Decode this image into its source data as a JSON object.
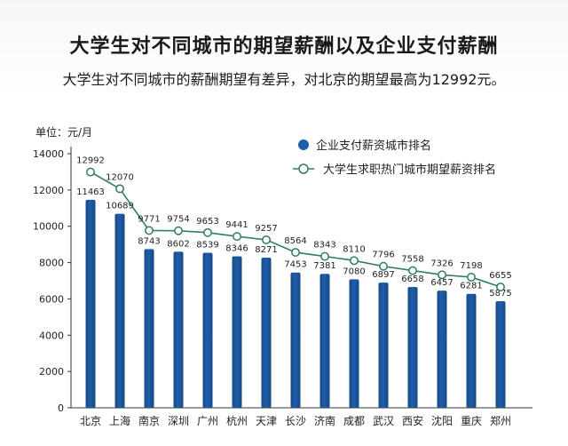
{
  "title": "大学生对不同城市的期望薪酬以及企业支付薪酬",
  "subtitle": "大学生对不同城市的薪酬期望有差异，对北京的期望最高为12992元。",
  "unit_label": "单位：元/月",
  "colors": {
    "bar": "#1f5ea8",
    "bar_dark": "#164a88",
    "line": "#2e7d5b",
    "marker_fill": "#ffffff",
    "axis": "#333333",
    "text": "#222222"
  },
  "chart_data": {
    "type": "bar",
    "categories": [
      "北京",
      "上海",
      "南京",
      "深圳",
      "广州",
      "杭州",
      "天津",
      "长沙",
      "济南",
      "成都",
      "武汉",
      "西安",
      "沈阳",
      "重庆",
      "郑州"
    ],
    "series": [
      {
        "name": "企业支付薪资城市排名",
        "type": "bar",
        "values": [
          11463,
          10689,
          8743,
          8602,
          8539,
          8346,
          8271,
          7453,
          7381,
          7080,
          6897,
          6658,
          6457,
          6281,
          5875
        ]
      },
      {
        "name": "大学生求职热门城市期望薪资排名",
        "type": "line",
        "values": [
          12992,
          12070,
          9771,
          9754,
          9653,
          9441,
          9257,
          8564,
          8343,
          8110,
          7796,
          7558,
          7326,
          7198,
          6655
        ]
      }
    ],
    "yticks": [
      0,
      2000,
      4000,
      6000,
      8000,
      10000,
      12000,
      14000
    ],
    "ylim": [
      0,
      14000
    ],
    "legend_position": "top-right",
    "grid": false
  }
}
